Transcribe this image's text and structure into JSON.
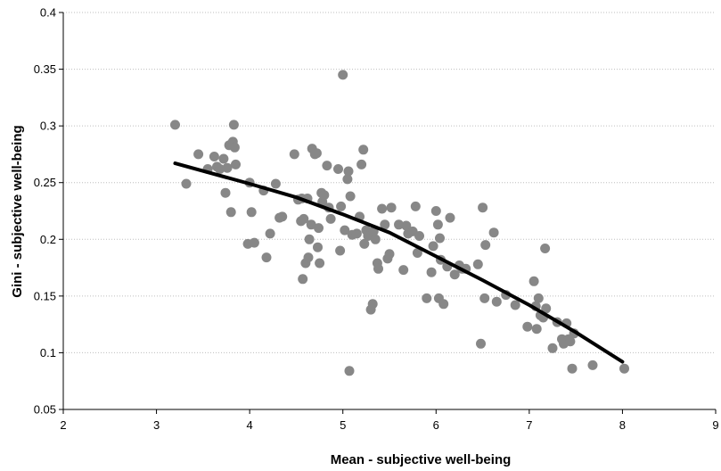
{
  "chart_data": {
    "type": "scatter",
    "xlabel": "Mean - subjective well-being",
    "ylabel": "Gini - subjective well-being",
    "xlim": [
      2,
      9
    ],
    "ylim": [
      0.05,
      0.4
    ],
    "x_ticks": [
      "2",
      "3",
      "4",
      "5",
      "6",
      "7",
      "8",
      "9"
    ],
    "y_ticks": [
      "0.05",
      "0.1",
      "0.15",
      "0.2",
      "0.25",
      "0.3",
      "0.35",
      "0.4"
    ],
    "grid": "horizontal",
    "series": [
      {
        "points": [
          [
            3.2,
            0.301
          ],
          [
            3.32,
            0.249
          ],
          [
            3.45,
            0.275
          ],
          [
            3.55,
            0.262
          ],
          [
            3.62,
            0.273
          ],
          [
            3.65,
            0.264
          ],
          [
            3.68,
            0.262
          ],
          [
            3.72,
            0.271
          ],
          [
            3.74,
            0.241
          ],
          [
            3.76,
            0.263
          ],
          [
            3.78,
            0.283
          ],
          [
            3.8,
            0.224
          ],
          [
            3.82,
            0.286
          ],
          [
            3.83,
            0.301
          ],
          [
            3.84,
            0.281
          ],
          [
            3.85,
            0.266
          ],
          [
            3.98,
            0.196
          ],
          [
            4.0,
            0.25
          ],
          [
            4.02,
            0.224
          ],
          [
            4.05,
            0.197
          ],
          [
            4.15,
            0.243
          ],
          [
            4.18,
            0.184
          ],
          [
            4.22,
            0.205
          ],
          [
            4.28,
            0.249
          ],
          [
            4.32,
            0.219
          ],
          [
            4.35,
            0.22
          ],
          [
            4.48,
            0.275
          ],
          [
            4.52,
            0.235
          ],
          [
            4.55,
            0.216
          ],
          [
            4.56,
            0.236
          ],
          [
            4.57,
            0.165
          ],
          [
            4.58,
            0.218
          ],
          [
            4.6,
            0.179
          ],
          [
            4.62,
            0.236
          ],
          [
            4.63,
            0.184
          ],
          [
            4.64,
            0.2
          ],
          [
            4.66,
            0.213
          ],
          [
            4.67,
            0.28
          ],
          [
            4.7,
            0.275
          ],
          [
            4.72,
            0.276
          ],
          [
            4.73,
            0.193
          ],
          [
            4.74,
            0.21
          ],
          [
            4.75,
            0.179
          ],
          [
            4.77,
            0.241
          ],
          [
            4.78,
            0.233
          ],
          [
            4.8,
            0.239
          ],
          [
            4.83,
            0.265
          ],
          [
            4.85,
            0.228
          ],
          [
            4.87,
            0.218
          ],
          [
            4.95,
            0.262
          ],
          [
            4.97,
            0.19
          ],
          [
            4.98,
            0.229
          ],
          [
            5.0,
            0.345
          ],
          [
            5.02,
            0.208
          ],
          [
            5.05,
            0.253
          ],
          [
            5.06,
            0.26
          ],
          [
            5.07,
            0.084
          ],
          [
            5.08,
            0.238
          ],
          [
            5.1,
            0.204
          ],
          [
            5.15,
            0.205
          ],
          [
            5.18,
            0.22
          ],
          [
            5.2,
            0.266
          ],
          [
            5.22,
            0.279
          ],
          [
            5.23,
            0.196
          ],
          [
            5.25,
            0.208
          ],
          [
            5.27,
            0.203
          ],
          [
            5.3,
            0.138
          ],
          [
            5.32,
            0.143
          ],
          [
            5.33,
            0.207
          ],
          [
            5.35,
            0.2
          ],
          [
            5.37,
            0.179
          ],
          [
            5.38,
            0.174
          ],
          [
            5.42,
            0.227
          ],
          [
            5.45,
            0.213
          ],
          [
            5.48,
            0.183
          ],
          [
            5.5,
            0.187
          ],
          [
            5.52,
            0.228
          ],
          [
            5.6,
            0.213
          ],
          [
            5.65,
            0.173
          ],
          [
            5.68,
            0.212
          ],
          [
            5.7,
            0.205
          ],
          [
            5.75,
            0.207
          ],
          [
            5.78,
            0.229
          ],
          [
            5.8,
            0.188
          ],
          [
            5.82,
            0.203
          ],
          [
            5.9,
            0.148
          ],
          [
            5.95,
            0.171
          ],
          [
            5.97,
            0.194
          ],
          [
            6.0,
            0.225
          ],
          [
            6.02,
            0.213
          ],
          [
            6.03,
            0.148
          ],
          [
            6.04,
            0.201
          ],
          [
            6.05,
            0.182
          ],
          [
            6.08,
            0.143
          ],
          [
            6.12,
            0.176
          ],
          [
            6.15,
            0.219
          ],
          [
            6.2,
            0.169
          ],
          [
            6.25,
            0.177
          ],
          [
            6.28,
            0.174
          ],
          [
            6.32,
            0.174
          ],
          [
            6.45,
            0.178
          ],
          [
            6.48,
            0.108
          ],
          [
            6.5,
            0.228
          ],
          [
            6.52,
            0.148
          ],
          [
            6.53,
            0.195
          ],
          [
            6.62,
            0.206
          ],
          [
            6.65,
            0.145
          ],
          [
            6.75,
            0.151
          ],
          [
            6.85,
            0.142
          ],
          [
            6.98,
            0.123
          ],
          [
            7.05,
            0.163
          ],
          [
            7.07,
            0.141
          ],
          [
            7.08,
            0.121
          ],
          [
            7.1,
            0.148
          ],
          [
            7.12,
            0.133
          ],
          [
            7.15,
            0.131
          ],
          [
            7.17,
            0.192
          ],
          [
            7.18,
            0.139
          ],
          [
            7.25,
            0.104
          ],
          [
            7.3,
            0.127
          ],
          [
            7.35,
            0.112
          ],
          [
            7.37,
            0.108
          ],
          [
            7.4,
            0.126
          ],
          [
            7.42,
            0.112
          ],
          [
            7.44,
            0.11
          ],
          [
            7.46,
            0.086
          ],
          [
            7.48,
            0.117
          ],
          [
            7.68,
            0.089
          ],
          [
            8.02,
            0.086
          ]
        ]
      }
    ],
    "trendline": {
      "x": [
        3.2,
        4.0,
        4.5,
        5.0,
        5.5,
        6.0,
        6.5,
        7.0,
        7.5,
        8.0
      ],
      "y": [
        0.267,
        0.249,
        0.237,
        0.222,
        0.206,
        0.185,
        0.164,
        0.142,
        0.118,
        0.092
      ]
    }
  }
}
